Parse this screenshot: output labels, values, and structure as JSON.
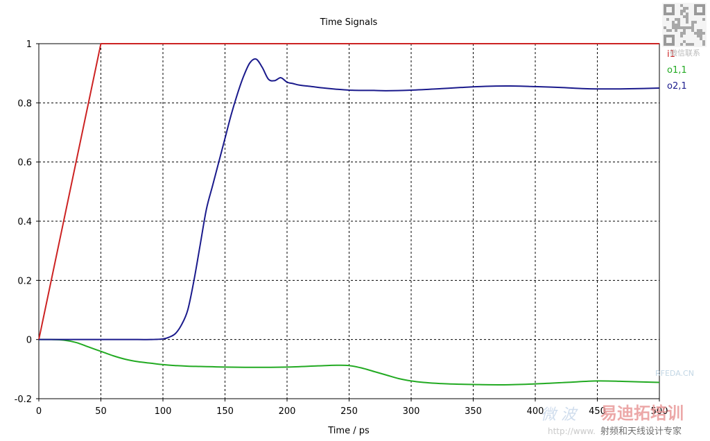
{
  "chart_data": {
    "type": "line",
    "title": "Time Signals",
    "xlabel": "Time / ps",
    "ylabel": "",
    "xlim": [
      0,
      500
    ],
    "ylim": [
      -0.2,
      1
    ],
    "xticks": [
      0,
      50,
      100,
      150,
      200,
      250,
      300,
      350,
      400,
      450,
      500
    ],
    "yticks": [
      -0.2,
      0,
      0.2,
      0.4,
      0.6,
      0.8,
      1
    ],
    "ytick_labels": [
      "-0.2",
      "0",
      "0.2",
      "0.4",
      "0.6",
      "0.8",
      "1"
    ],
    "grid": true,
    "legend_position": "right",
    "series": [
      {
        "name": "i1",
        "color": "#cc2222",
        "x": [
          0,
          50,
          500
        ],
        "y": [
          0,
          1,
          1
        ]
      },
      {
        "name": "o1,1",
        "color": "#22aa22",
        "x": [
          0,
          10,
          20,
          30,
          40,
          50,
          60,
          70,
          80,
          90,
          100,
          110,
          120,
          130,
          140,
          150,
          175,
          200,
          225,
          240,
          250,
          260,
          270,
          280,
          290,
          300,
          310,
          320,
          330,
          340,
          350,
          375,
          400,
          425,
          450,
          475,
          500
        ],
        "y": [
          0,
          0,
          -0.002,
          -0.01,
          -0.025,
          -0.04,
          -0.055,
          -0.067,
          -0.075,
          -0.08,
          -0.085,
          -0.088,
          -0.09,
          -0.091,
          -0.092,
          -0.093,
          -0.094,
          -0.093,
          -0.089,
          -0.087,
          -0.088,
          -0.096,
          -0.108,
          -0.12,
          -0.132,
          -0.14,
          -0.145,
          -0.148,
          -0.15,
          -0.151,
          -0.152,
          -0.153,
          -0.15,
          -0.145,
          -0.14,
          -0.142,
          -0.145
        ]
      },
      {
        "name": "o2,1",
        "color": "#1a1a8c",
        "x": [
          0,
          20,
          40,
          60,
          80,
          90,
          100,
          105,
          110,
          115,
          120,
          125,
          130,
          135,
          140,
          145,
          150,
          155,
          160,
          165,
          170,
          175,
          180,
          185,
          190,
          195,
          200,
          205,
          210,
          220,
          230,
          240,
          250,
          260,
          270,
          280,
          300,
          320,
          340,
          360,
          380,
          400,
          420,
          440,
          460,
          480,
          500
        ],
        "y": [
          0,
          0,
          0,
          0,
          0,
          0,
          0.002,
          0.008,
          0.02,
          0.05,
          0.1,
          0.2,
          0.32,
          0.44,
          0.52,
          0.6,
          0.68,
          0.76,
          0.83,
          0.89,
          0.935,
          0.948,
          0.92,
          0.88,
          0.875,
          0.885,
          0.87,
          0.865,
          0.86,
          0.855,
          0.85,
          0.846,
          0.843,
          0.842,
          0.842,
          0.841,
          0.843,
          0.847,
          0.852,
          0.856,
          0.857,
          0.855,
          0.852,
          0.848,
          0.847,
          0.848,
          0.85
        ]
      }
    ]
  },
  "watermark": {
    "qr_caption": "微信联系",
    "site_top": "RFEDA.CN",
    "brand_left": "微 波",
    "brand_right": "易迪拓培训",
    "url": "http://www.",
    "slogan": "射频和天线设计专家"
  }
}
